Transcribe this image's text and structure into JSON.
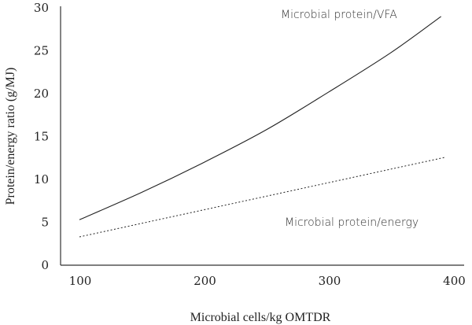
{
  "chart_data": {
    "type": "line",
    "title": "",
    "xlabel": "Microbial cells/kg OMTDR",
    "ylabel": "Protein/energy ratio (g/MJ)",
    "xlim": [
      85,
      410
    ],
    "ylim": [
      0,
      30
    ],
    "xticks": [
      "100",
      "200",
      "300",
      "400"
    ],
    "yticks": [
      "0",
      "5",
      "10",
      "15",
      "20",
      "25",
      "30"
    ],
    "grid": false,
    "series": [
      {
        "name": "Microbial protein/VFA",
        "style": "solid",
        "color": "#222222",
        "x": [
          100,
          150,
          200,
          250,
          300,
          350,
          390
        ],
        "y": [
          5.3,
          8.5,
          12.0,
          15.8,
          20.2,
          24.8,
          29.0
        ]
      },
      {
        "name": "Microbial protein/energy",
        "style": "dotted",
        "color": "#222222",
        "x": [
          100,
          394
        ],
        "y": [
          3.3,
          12.6
        ]
      }
    ]
  }
}
